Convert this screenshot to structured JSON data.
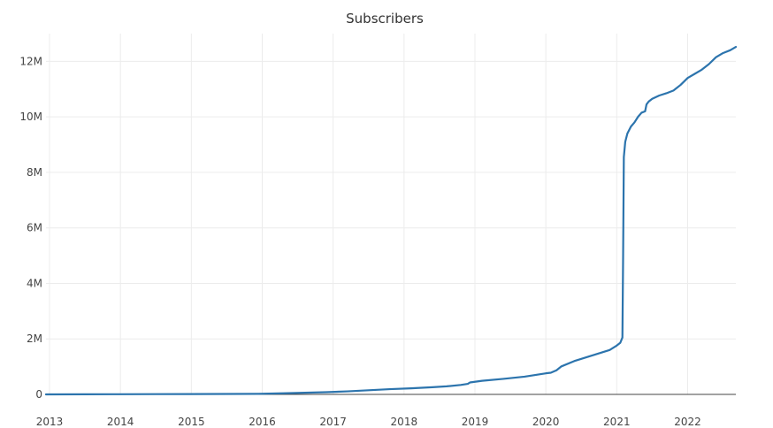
{
  "chart_data": {
    "type": "line",
    "title": "Subscribers",
    "xlabel": "",
    "ylabel": "",
    "xlim": [
      2012.95,
      2022.68
    ],
    "ylim": [
      0,
      13000000
    ],
    "x_ticks": [
      2013,
      2014,
      2015,
      2016,
      2017,
      2018,
      2019,
      2020,
      2021,
      2022
    ],
    "x_tick_labels": [
      "2013",
      "2014",
      "2015",
      "2016",
      "2017",
      "2018",
      "2019",
      "2020",
      "2021",
      "2022"
    ],
    "y_ticks": [
      0,
      2000000,
      4000000,
      6000000,
      8000000,
      10000000,
      12000000
    ],
    "y_tick_labels": [
      "0",
      "2M",
      "4M",
      "6M",
      "8M",
      "10M",
      "12M"
    ],
    "grid": true,
    "series": [
      {
        "name": "Subscribers",
        "color": "#2c74ad",
        "x": [
          2012.95,
          2013.5,
          2014.0,
          2014.5,
          2015.0,
          2015.5,
          2015.95,
          2016.3,
          2016.6,
          2016.9,
          2017.2,
          2017.5,
          2017.8,
          2018.1,
          2018.4,
          2018.6,
          2018.8,
          2018.9,
          2018.93,
          2019.1,
          2019.4,
          2019.7,
          2019.9,
          2020.0,
          2020.07,
          2020.15,
          2020.22,
          2020.4,
          2020.6,
          2020.8,
          2020.9,
          2021.0,
          2021.05,
          2021.08,
          2021.09,
          2021.1,
          2021.12,
          2021.15,
          2021.2,
          2021.25,
          2021.3,
          2021.35,
          2021.4,
          2021.42,
          2021.45,
          2021.5,
          2021.6,
          2021.7,
          2021.8,
          2021.9,
          2022.0,
          2022.1,
          2022.2,
          2022.3,
          2022.4,
          2022.5,
          2022.6,
          2022.68
        ],
        "y": [
          0,
          3000,
          6000,
          10000,
          13000,
          17000,
          20000,
          40000,
          60000,
          80000,
          110000,
          150000,
          190000,
          220000,
          260000,
          290000,
          340000,
          380000,
          430000,
          490000,
          560000,
          640000,
          720000,
          760000,
          780000,
          870000,
          1010000,
          1200000,
          1360000,
          1520000,
          1600000,
          1760000,
          1860000,
          2050000,
          5000000,
          8550000,
          9100000,
          9400000,
          9650000,
          9800000,
          10000000,
          10150000,
          10200000,
          10450000,
          10550000,
          10650000,
          10770000,
          10850000,
          10950000,
          11150000,
          11400000,
          11550000,
          11700000,
          11900000,
          12150000,
          12300000,
          12400000,
          12520000
        ]
      }
    ]
  }
}
